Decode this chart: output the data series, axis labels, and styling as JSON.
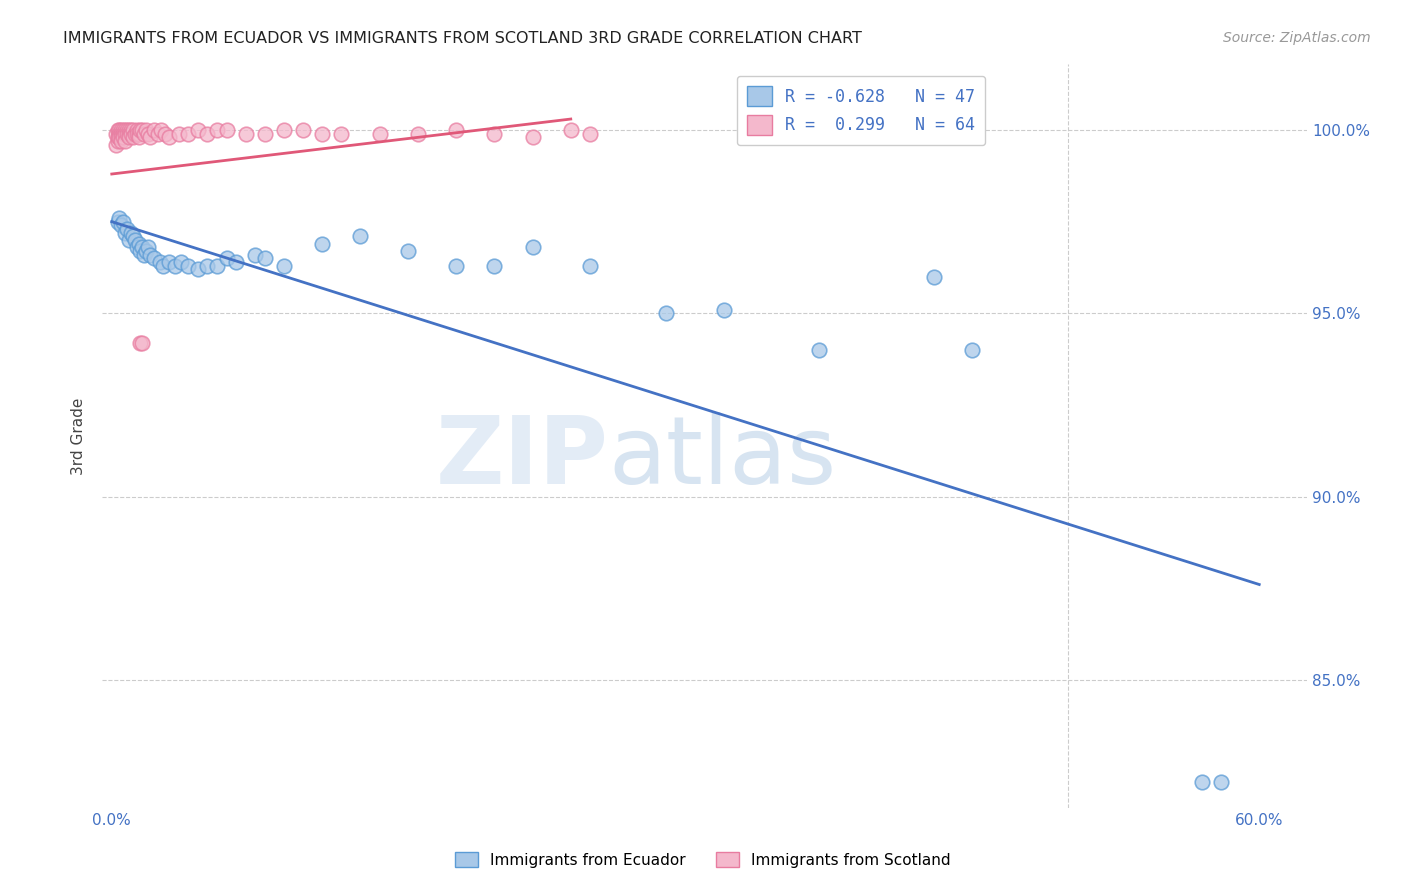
{
  "title": "IMMIGRANTS FROM ECUADOR VS IMMIGRANTS FROM SCOTLAND 3RD GRADE CORRELATION CHART",
  "source": "Source: ZipAtlas.com",
  "ylabel_label": "3rd Grade",
  "xlim": [
    -0.005,
    0.625
  ],
  "ylim": [
    0.815,
    1.018
  ],
  "y_tick_pos": [
    0.85,
    0.9,
    0.95,
    1.0
  ],
  "y_tick_labels": [
    "85.0%",
    "90.0%",
    "95.0%",
    "100.0%"
  ],
  "x_tick_pos": [
    0.0,
    0.1,
    0.2,
    0.3,
    0.4,
    0.5,
    0.6
  ],
  "x_tick_labels": [
    "0.0%",
    "",
    "",
    "",
    "",
    "",
    "60.0%"
  ],
  "legend_r1": "R = -0.628",
  "legend_n1": "N = 47",
  "legend_r2": "R =  0.299",
  "legend_n2": "N = 64",
  "color_ecuador": "#a8c8e8",
  "color_ecuador_edge": "#5b9bd5",
  "color_ecuador_line": "#4472c4",
  "color_scotland": "#f4b8cc",
  "color_scotland_edge": "#e87ca0",
  "color_scotland_line": "#e05878",
  "watermark_zip": "ZIP",
  "watermark_atlas": "atlas",
  "ecuador_line_x": [
    0.0,
    0.6
  ],
  "ecuador_line_y": [
    0.975,
    0.876
  ],
  "scotland_line_x": [
    0.0,
    0.24
  ],
  "scotland_line_y": [
    0.988,
    1.003
  ],
  "ecuador_points": [
    [
      0.003,
      0.975
    ],
    [
      0.004,
      0.976
    ],
    [
      0.005,
      0.974
    ],
    [
      0.006,
      0.975
    ],
    [
      0.007,
      0.972
    ],
    [
      0.008,
      0.973
    ],
    [
      0.009,
      0.97
    ],
    [
      0.01,
      0.972
    ],
    [
      0.011,
      0.971
    ],
    [
      0.012,
      0.97
    ],
    [
      0.013,
      0.968
    ],
    [
      0.014,
      0.969
    ],
    [
      0.015,
      0.967
    ],
    [
      0.016,
      0.968
    ],
    [
      0.017,
      0.966
    ],
    [
      0.018,
      0.967
    ],
    [
      0.019,
      0.968
    ],
    [
      0.02,
      0.966
    ],
    [
      0.022,
      0.965
    ],
    [
      0.025,
      0.964
    ],
    [
      0.027,
      0.963
    ],
    [
      0.03,
      0.964
    ],
    [
      0.033,
      0.963
    ],
    [
      0.036,
      0.964
    ],
    [
      0.04,
      0.963
    ],
    [
      0.045,
      0.962
    ],
    [
      0.05,
      0.963
    ],
    [
      0.055,
      0.963
    ],
    [
      0.06,
      0.965
    ],
    [
      0.065,
      0.964
    ],
    [
      0.075,
      0.966
    ],
    [
      0.08,
      0.965
    ],
    [
      0.09,
      0.963
    ],
    [
      0.11,
      0.969
    ],
    [
      0.13,
      0.971
    ],
    [
      0.155,
      0.967
    ],
    [
      0.18,
      0.963
    ],
    [
      0.2,
      0.963
    ],
    [
      0.22,
      0.968
    ],
    [
      0.25,
      0.963
    ],
    [
      0.29,
      0.95
    ],
    [
      0.32,
      0.951
    ],
    [
      0.37,
      0.94
    ],
    [
      0.43,
      0.96
    ],
    [
      0.45,
      0.94
    ],
    [
      0.57,
      0.822
    ],
    [
      0.58,
      0.822
    ]
  ],
  "scotland_points": [
    [
      0.002,
      0.996
    ],
    [
      0.002,
      0.999
    ],
    [
      0.003,
      0.997
    ],
    [
      0.003,
      1.0
    ],
    [
      0.003,
      0.998
    ],
    [
      0.004,
      1.0
    ],
    [
      0.004,
      0.999
    ],
    [
      0.004,
      0.998
    ],
    [
      0.005,
      1.0
    ],
    [
      0.005,
      0.999
    ],
    [
      0.005,
      0.998
    ],
    [
      0.005,
      0.997
    ],
    [
      0.006,
      1.0
    ],
    [
      0.006,
      0.999
    ],
    [
      0.006,
      0.998
    ],
    [
      0.007,
      1.0
    ],
    [
      0.007,
      0.999
    ],
    [
      0.007,
      0.997
    ],
    [
      0.008,
      1.0
    ],
    [
      0.008,
      0.999
    ],
    [
      0.009,
      1.0
    ],
    [
      0.009,
      0.999
    ],
    [
      0.009,
      0.998
    ],
    [
      0.01,
      1.0
    ],
    [
      0.01,
      0.999
    ],
    [
      0.011,
      1.0
    ],
    [
      0.011,
      0.998
    ],
    [
      0.012,
      0.999
    ],
    [
      0.013,
      1.0
    ],
    [
      0.013,
      0.999
    ],
    [
      0.014,
      0.999
    ],
    [
      0.014,
      0.998
    ],
    [
      0.015,
      1.0
    ],
    [
      0.016,
      1.0
    ],
    [
      0.017,
      0.999
    ],
    [
      0.018,
      1.0
    ],
    [
      0.019,
      0.999
    ],
    [
      0.02,
      0.998
    ],
    [
      0.022,
      1.0
    ],
    [
      0.024,
      0.999
    ],
    [
      0.026,
      1.0
    ],
    [
      0.028,
      0.999
    ],
    [
      0.03,
      0.998
    ],
    [
      0.035,
      0.999
    ],
    [
      0.04,
      0.999
    ],
    [
      0.045,
      1.0
    ],
    [
      0.05,
      0.999
    ],
    [
      0.055,
      1.0
    ],
    [
      0.06,
      1.0
    ],
    [
      0.07,
      0.999
    ],
    [
      0.08,
      0.999
    ],
    [
      0.09,
      1.0
    ],
    [
      0.1,
      1.0
    ],
    [
      0.11,
      0.999
    ],
    [
      0.12,
      0.999
    ],
    [
      0.14,
      0.999
    ],
    [
      0.16,
      0.999
    ],
    [
      0.18,
      1.0
    ],
    [
      0.2,
      0.999
    ],
    [
      0.22,
      0.998
    ],
    [
      0.24,
      1.0
    ],
    [
      0.25,
      0.999
    ],
    [
      0.015,
      0.942
    ],
    [
      0.016,
      0.942
    ]
  ]
}
